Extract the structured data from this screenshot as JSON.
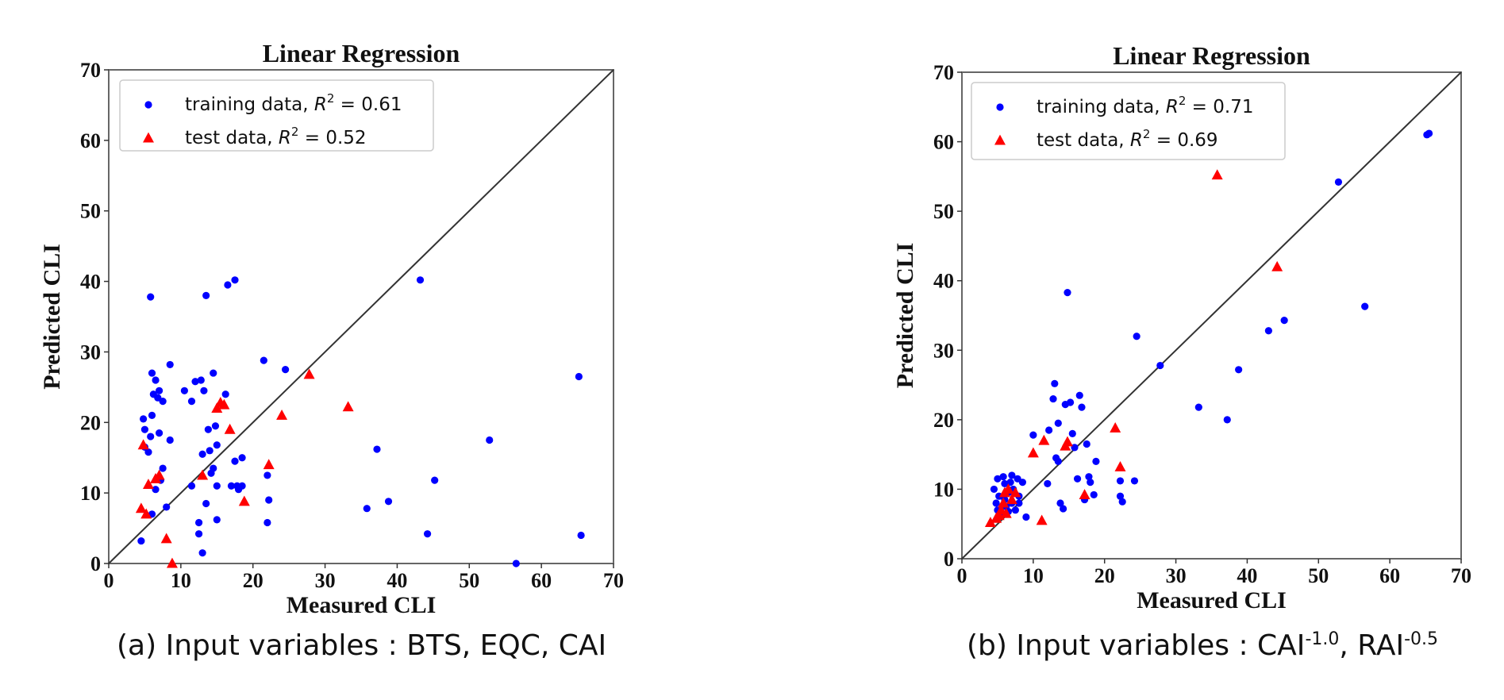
{
  "chart_data": [
    {
      "type": "scatter",
      "title": "Linear Regression",
      "xlabel": "Measured CLI",
      "ylabel": "Predicted CLI",
      "xlim": [
        0,
        70
      ],
      "ylim": [
        0,
        70
      ],
      "ticks": [
        0,
        10,
        20,
        30,
        40,
        50,
        60,
        70
      ],
      "tick_labels": [
        "0",
        "10",
        "20",
        "30",
        "40",
        "50",
        "60",
        "70"
      ],
      "grid": false,
      "legend_position": "top-left",
      "identity_line": true,
      "caption": "(a) Input variables : BTS, EQC, CAI",
      "series": [
        {
          "name": "training data, R² = 0.61",
          "label_prefix": "training data, ",
          "r2_text": " = 0.61",
          "marker": "circle",
          "color": "#0000ff",
          "points": [
            [
              4.5,
              3.2
            ],
            [
              4.8,
              20.5
            ],
            [
              5,
              16.5
            ],
            [
              5,
              19
            ],
            [
              5.5,
              15.8
            ],
            [
              5.8,
              37.8
            ],
            [
              5.8,
              18
            ],
            [
              6,
              27
            ],
            [
              6,
              21
            ],
            [
              6,
              7
            ],
            [
              6.2,
              24
            ],
            [
              6.5,
              26
            ],
            [
              6.5,
              10.5
            ],
            [
              6.8,
              23.5
            ],
            [
              7,
              24.5
            ],
            [
              7,
              18.5
            ],
            [
              7.2,
              11.8
            ],
            [
              7.5,
              23
            ],
            [
              7.5,
              13.5
            ],
            [
              8,
              8
            ],
            [
              8.5,
              28.2
            ],
            [
              8.5,
              17.5
            ],
            [
              10.5,
              24.5
            ],
            [
              11.5,
              11
            ],
            [
              11.5,
              23
            ],
            [
              12,
              25.8
            ],
            [
              12.5,
              4.2
            ],
            [
              12.5,
              5.8
            ],
            [
              12.8,
              26
            ],
            [
              13,
              15.5
            ],
            [
              13,
              1.5
            ],
            [
              13.2,
              24.5
            ],
            [
              13.5,
              38
            ],
            [
              13.5,
              8.5
            ],
            [
              13.8,
              19
            ],
            [
              14,
              16
            ],
            [
              14.2,
              12.8
            ],
            [
              14.5,
              13.5
            ],
            [
              14.5,
              27
            ],
            [
              14.8,
              19.5
            ],
            [
              15,
              16.8
            ],
            [
              15,
              11
            ],
            [
              15,
              6.2
            ],
            [
              16.2,
              24
            ],
            [
              16.5,
              39.5
            ],
            [
              17,
              11
            ],
            [
              17.5,
              40.2
            ],
            [
              17.5,
              14.5
            ],
            [
              17.8,
              11
            ],
            [
              18,
              10.5
            ],
            [
              18.5,
              15
            ],
            [
              18.5,
              11
            ],
            [
              21.5,
              28.8
            ],
            [
              22,
              5.8
            ],
            [
              22,
              12.5
            ],
            [
              22.2,
              9
            ],
            [
              24.5,
              27.5
            ],
            [
              37.2,
              16.2
            ],
            [
              35.8,
              7.8
            ],
            [
              38.8,
              8.8
            ],
            [
              43.2,
              40.2
            ],
            [
              44.2,
              4.2
            ],
            [
              45.2,
              11.8
            ],
            [
              52.8,
              17.5
            ],
            [
              56.5,
              0
            ],
            [
              65.2,
              26.5
            ],
            [
              65.5,
              4
            ]
          ]
        },
        {
          "name": "test data, R² = 0.52",
          "label_prefix": "test data, ",
          "r2_text": " = 0.52",
          "marker": "triangle",
          "color": "#ff0000",
          "points": [
            [
              4.5,
              7.8
            ],
            [
              4.8,
              16.8
            ],
            [
              5.2,
              7
            ],
            [
              5.5,
              11.2
            ],
            [
              6.5,
              12
            ],
            [
              7,
              12.5
            ],
            [
              8,
              3.5
            ],
            [
              8.8,
              0
            ],
            [
              13,
              12.5
            ],
            [
              15,
              22
            ],
            [
              15.5,
              22.8
            ],
            [
              16,
              22.5
            ],
            [
              16.8,
              19
            ],
            [
              18.8,
              8.8
            ],
            [
              22.2,
              14
            ],
            [
              24,
              21
            ],
            [
              27.8,
              26.8
            ],
            [
              33.2,
              22.2
            ]
          ]
        }
      ]
    },
    {
      "type": "scatter",
      "title": "Linear Regression",
      "xlabel": "Measured CLI",
      "ylabel": "Predicted CLI",
      "xlim": [
        0,
        70
      ],
      "ylim": [
        0,
        70
      ],
      "ticks": [
        0,
        10,
        20,
        30,
        40,
        50,
        60,
        70
      ],
      "tick_labels": [
        "0",
        "10",
        "20",
        "30",
        "40",
        "50",
        "60",
        "70"
      ],
      "grid": false,
      "legend_position": "top-left",
      "identity_line": true,
      "caption_prefix": "(b) Input variables : CAI",
      "caption_sup1": "-1.0",
      "caption_mid": ", RAI",
      "caption_sup2": "-0.5",
      "series": [
        {
          "name": "training data, R² = 0.71",
          "label_prefix": "training data, ",
          "r2_text": " = 0.71",
          "marker": "circle",
          "color": "#0000ff",
          "points": [
            [
              4.5,
              10
            ],
            [
              4.8,
              8
            ],
            [
              5,
              11.5
            ],
            [
              5,
              7
            ],
            [
              5.2,
              9
            ],
            [
              5.5,
              6.5
            ],
            [
              5.8,
              11.8
            ],
            [
              6,
              8.5
            ],
            [
              6,
              10.8
            ],
            [
              6.2,
              7.5
            ],
            [
              6.5,
              9.5
            ],
            [
              6.5,
              6.8
            ],
            [
              6.8,
              11
            ],
            [
              7,
              8
            ],
            [
              7,
              12
            ],
            [
              7.2,
              10
            ],
            [
              7.5,
              7
            ],
            [
              7.8,
              11.5
            ],
            [
              8,
              9
            ],
            [
              8,
              8
            ],
            [
              8.5,
              11
            ],
            [
              9,
              6
            ],
            [
              10,
              17.8
            ],
            [
              12,
              10.8
            ],
            [
              12.2,
              18.5
            ],
            [
              12.8,
              23
            ],
            [
              13,
              25.2
            ],
            [
              13.2,
              14.5
            ],
            [
              13.5,
              14
            ],
            [
              13.5,
              19.5
            ],
            [
              13.8,
              8
            ],
            [
              14.2,
              7.2
            ],
            [
              14.5,
              22.2
            ],
            [
              14.8,
              38.3
            ],
            [
              15.2,
              22.5
            ],
            [
              15.5,
              18
            ],
            [
              15.8,
              16
            ],
            [
              16.2,
              11.5
            ],
            [
              16.5,
              23.5
            ],
            [
              16.8,
              21.8
            ],
            [
              17.2,
              8.5
            ],
            [
              17.5,
              16.5
            ],
            [
              17.8,
              11.8
            ],
            [
              18,
              11
            ],
            [
              18.5,
              9.2
            ],
            [
              18.8,
              14
            ],
            [
              22.2,
              11.2
            ],
            [
              22.2,
              9
            ],
            [
              22.5,
              8.2
            ],
            [
              24.2,
              11.2
            ],
            [
              24.5,
              32
            ],
            [
              27.8,
              27.8
            ],
            [
              33.2,
              21.8
            ],
            [
              37.2,
              20
            ],
            [
              38.8,
              27.2
            ],
            [
              43,
              32.8
            ],
            [
              45.2,
              34.3
            ],
            [
              52.8,
              54.2
            ],
            [
              56.5,
              36.3
            ],
            [
              65.2,
              61
            ],
            [
              65.5,
              61.2
            ]
          ]
        },
        {
          "name": "test data, R² = 0.69",
          "label_prefix": "test data, ",
          "r2_text": " = 0.69",
          "marker": "triangle",
          "color": "#ff0000",
          "points": [
            [
              4,
              5.2
            ],
            [
              4.8,
              5.8
            ],
            [
              5.2,
              6.2
            ],
            [
              5.5,
              7
            ],
            [
              5.8,
              8
            ],
            [
              6,
              9.5
            ],
            [
              6.2,
              6.5
            ],
            [
              6.5,
              10
            ],
            [
              7,
              8.5
            ],
            [
              7.5,
              9.5
            ],
            [
              10,
              15.2
            ],
            [
              11.2,
              5.5
            ],
            [
              11.5,
              17
            ],
            [
              14.5,
              16.2
            ],
            [
              14.8,
              16.8
            ],
            [
              17.2,
              9.2
            ],
            [
              21.5,
              18.8
            ],
            [
              22.2,
              13.2
            ],
            [
              35.8,
              55.2
            ],
            [
              44.2,
              42
            ]
          ]
        }
      ]
    }
  ]
}
